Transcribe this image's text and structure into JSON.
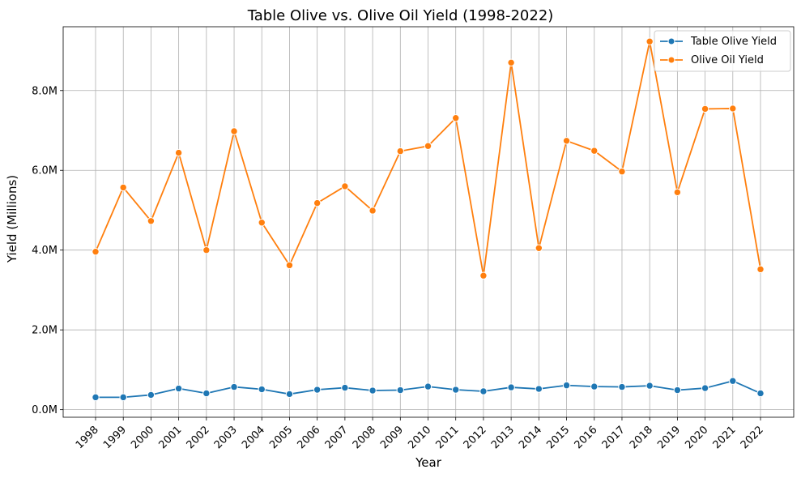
{
  "chart_data": {
    "type": "line",
    "title": "Table Olive vs. Olive Oil Yield (1998-2022)",
    "xlabel": "Year",
    "ylabel": "Yield (Millions)",
    "categories": [
      "1998",
      "1999",
      "2000",
      "2001",
      "2002",
      "2003",
      "2004",
      "2005",
      "2006",
      "2007",
      "2008",
      "2009",
      "2010",
      "2011",
      "2012",
      "2013",
      "2014",
      "2015",
      "2016",
      "2017",
      "2018",
      "2019",
      "2020",
      "2021",
      "2022"
    ],
    "ylim": [
      0,
      9600000
    ],
    "yticks": [
      0,
      2000000,
      4000000,
      6000000,
      8000000
    ],
    "ytick_labels": [
      "0.0M",
      "2.0M",
      "4.0M",
      "6.0M",
      "8.0M"
    ],
    "grid": true,
    "legend_position": "top-right",
    "series": [
      {
        "name": "Table Olive Yield",
        "color": "#1f77b4",
        "values": [
          310000,
          310000,
          370000,
          530000,
          410000,
          570000,
          510000,
          390000,
          500000,
          550000,
          480000,
          490000,
          580000,
          500000,
          460000,
          560000,
          520000,
          610000,
          580000,
          570000,
          600000,
          490000,
          540000,
          720000,
          410000
        ]
      },
      {
        "name": "Olive Oil Yield",
        "color": "#ff7f0e",
        "values": [
          3960000,
          5570000,
          4730000,
          6440000,
          4000000,
          6980000,
          4690000,
          3620000,
          5180000,
          5600000,
          4990000,
          6480000,
          6610000,
          7310000,
          3360000,
          8700000,
          4050000,
          6740000,
          6490000,
          5970000,
          9230000,
          5450000,
          7540000,
          7550000,
          3520000
        ]
      }
    ]
  }
}
